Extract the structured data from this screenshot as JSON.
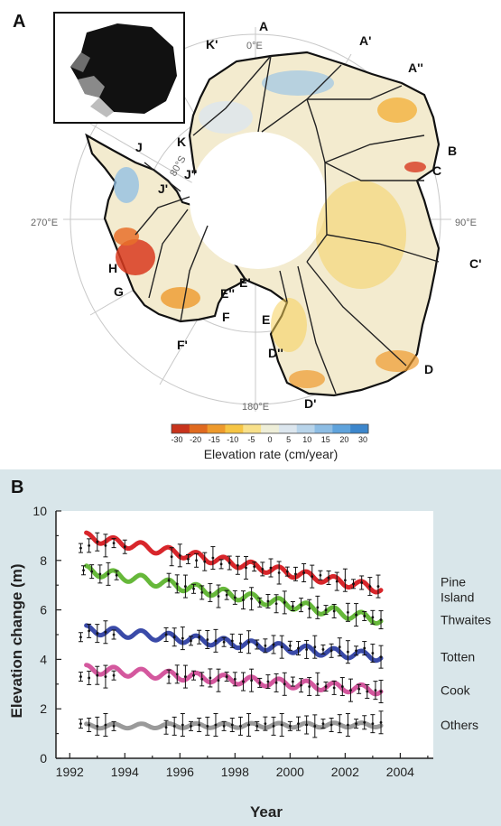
{
  "panels": {
    "a": "A",
    "b": "B"
  },
  "map": {
    "sector_labels": [
      "A",
      "A'",
      "A''",
      "B",
      "C",
      "C'",
      "D",
      "D'",
      "D''",
      "E",
      "E'",
      "E''",
      "F",
      "F'",
      "G",
      "H",
      "J",
      "J'",
      "J''",
      "K",
      "K'"
    ],
    "meridian_labels": [
      "0°E",
      "90°E",
      "180°E",
      "270°E"
    ],
    "latitude_label": "80°S",
    "colorbar": {
      "ticks": [
        "-30",
        "-20",
        "-15",
        "-10",
        "-5",
        "0",
        "5",
        "10",
        "15",
        "20",
        "30"
      ],
      "title": "Elevation rate (cm/year)",
      "colors": [
        "#c8331c",
        "#e06a1f",
        "#ee9a2c",
        "#f6c544",
        "#f8e08a",
        "#eeeed8",
        "#dce6ee",
        "#b8d4ea",
        "#8dbde4",
        "#5fa3dc",
        "#3c86cc"
      ]
    }
  },
  "chart_data": {
    "type": "line",
    "xlabel": "Year",
    "ylabel": "Elevation change (m)",
    "xlim": [
      1991.5,
      2005.2
    ],
    "ylim": [
      0,
      10
    ],
    "x_ticks": [
      "1992",
      "1994",
      "1996",
      "1998",
      "2000",
      "2002",
      "2004"
    ],
    "y_ticks": [
      "0",
      "2",
      "4",
      "6",
      "8",
      "10"
    ],
    "grid": false,
    "series": [
      {
        "name": "Pine Island",
        "label_lines": [
          "Pine",
          "Island"
        ],
        "color": "#d8262b",
        "x_start": 1992.6,
        "x_end": 2003.3,
        "y_start": 8.95,
        "y_end": 6.85,
        "amp": 0.17,
        "obs": [
          [
            1992.4,
            8.5
          ],
          [
            1992.7,
            8.6
          ],
          [
            1993.0,
            8.75
          ],
          [
            1993.3,
            8.6
          ],
          [
            1993.6,
            8.7
          ],
          [
            1994.0,
            8.55
          ],
          [
            1995.7,
            8.15
          ],
          [
            1996.0,
            8.2
          ],
          [
            1996.3,
            8.05
          ],
          [
            1996.6,
            8.0
          ],
          [
            1996.9,
            7.95
          ],
          [
            1997.2,
            8.1
          ],
          [
            1997.5,
            7.85
          ],
          [
            1997.8,
            7.9
          ],
          [
            1998.1,
            7.8
          ],
          [
            1998.4,
            7.7
          ],
          [
            1998.7,
            7.75
          ],
          [
            1999.0,
            7.65
          ],
          [
            1999.3,
            7.7
          ],
          [
            1999.6,
            7.5
          ],
          [
            1999.9,
            7.55
          ],
          [
            2000.2,
            7.45
          ],
          [
            2000.5,
            7.5
          ],
          [
            2000.8,
            7.35
          ],
          [
            2001.1,
            7.4
          ],
          [
            2001.4,
            7.3
          ],
          [
            2001.7,
            7.15
          ],
          [
            2002.0,
            7.2
          ],
          [
            2002.3,
            7.05
          ],
          [
            2002.6,
            7.1
          ],
          [
            2002.9,
            6.95
          ],
          [
            2003.2,
            6.95
          ]
        ]
      },
      {
        "name": "Thwaites",
        "label_lines": [
          "Thwaites"
        ],
        "color": "#66b83a",
        "x_start": 1992.6,
        "x_end": 2003.3,
        "y_start": 7.6,
        "y_end": 5.6,
        "amp": 0.18,
        "obs": [
          [
            1992.5,
            7.6
          ],
          [
            1992.8,
            7.55
          ],
          [
            1993.1,
            7.45
          ],
          [
            1993.4,
            7.45
          ],
          [
            1993.7,
            7.4
          ],
          [
            1995.6,
            7.2
          ],
          [
            1995.9,
            7.05
          ],
          [
            1996.2,
            6.95
          ],
          [
            1996.5,
            6.85
          ],
          [
            1996.8,
            6.7
          ],
          [
            1997.1,
            6.7
          ],
          [
            1997.4,
            6.55
          ],
          [
            1997.7,
            6.6
          ],
          [
            1998.0,
            6.5
          ],
          [
            1998.3,
            6.4
          ],
          [
            1998.6,
            6.45
          ],
          [
            1998.9,
            6.3
          ],
          [
            1999.2,
            6.35
          ],
          [
            1999.5,
            6.25
          ],
          [
            1999.8,
            6.3
          ],
          [
            2000.1,
            6.15
          ],
          [
            2000.4,
            6.2
          ],
          [
            2000.7,
            6.05
          ],
          [
            2001.0,
            6.1
          ],
          [
            2001.3,
            6.0
          ],
          [
            2001.6,
            5.95
          ],
          [
            2002.1,
            5.9
          ],
          [
            2002.4,
            5.8
          ],
          [
            2002.7,
            5.75
          ],
          [
            2003.0,
            5.7
          ],
          [
            2003.3,
            5.6
          ]
        ]
      },
      {
        "name": "Totten",
        "label_lines": [
          "Totten"
        ],
        "color": "#3a4aa8",
        "x_start": 1992.6,
        "x_end": 2003.3,
        "y_start": 5.2,
        "y_end": 4.1,
        "amp": 0.17,
        "obs": [
          [
            1992.4,
            4.9
          ],
          [
            1992.7,
            5.15
          ],
          [
            1993.0,
            5.05
          ],
          [
            1993.3,
            5.1
          ],
          [
            1993.6,
            5.0
          ],
          [
            1995.5,
            5.0
          ],
          [
            1995.8,
            4.9
          ],
          [
            1996.1,
            4.85
          ],
          [
            1996.4,
            4.75
          ],
          [
            1996.7,
            4.9
          ],
          [
            1997.0,
            4.8
          ],
          [
            1997.3,
            4.75
          ],
          [
            1997.6,
            4.7
          ],
          [
            1997.9,
            4.75
          ],
          [
            1998.2,
            4.65
          ],
          [
            1998.5,
            4.7
          ],
          [
            1998.8,
            4.6
          ],
          [
            1999.1,
            4.55
          ],
          [
            1999.4,
            4.6
          ],
          [
            1999.7,
            4.5
          ],
          [
            2000.0,
            4.55
          ],
          [
            2000.3,
            4.45
          ],
          [
            2000.6,
            4.4
          ],
          [
            2000.9,
            4.5
          ],
          [
            2001.2,
            4.4
          ],
          [
            2001.5,
            4.35
          ],
          [
            2001.8,
            4.5
          ],
          [
            2002.1,
            4.3
          ],
          [
            2002.4,
            4.35
          ],
          [
            2002.7,
            4.45
          ],
          [
            2003.0,
            4.25
          ],
          [
            2003.3,
            4.1
          ]
        ]
      },
      {
        "name": "Cook",
        "label_lines": [
          "Cook"
        ],
        "color": "#d4589e",
        "x_start": 1992.6,
        "x_end": 2003.3,
        "y_start": 3.6,
        "y_end": 2.75,
        "amp": 0.17,
        "obs": [
          [
            1992.4,
            3.3
          ],
          [
            1992.7,
            3.25
          ],
          [
            1993.0,
            3.35
          ],
          [
            1993.3,
            3.3
          ],
          [
            1993.6,
            3.35
          ],
          [
            1995.6,
            3.3
          ],
          [
            1995.9,
            3.4
          ],
          [
            1996.2,
            3.3
          ],
          [
            1996.5,
            3.35
          ],
          [
            1996.8,
            3.2
          ],
          [
            1997.1,
            3.25
          ],
          [
            1997.4,
            3.15
          ],
          [
            1997.7,
            3.3
          ],
          [
            1998.0,
            3.2
          ],
          [
            1998.3,
            3.1
          ],
          [
            1998.6,
            3.15
          ],
          [
            1998.9,
            3.05
          ],
          [
            1999.2,
            3.1
          ],
          [
            1999.5,
            3.05
          ],
          [
            1999.8,
            3.0
          ],
          [
            2000.1,
            3.1
          ],
          [
            2000.4,
            2.95
          ],
          [
            2000.7,
            2.9
          ],
          [
            2001.0,
            3.0
          ],
          [
            2001.3,
            2.9
          ],
          [
            2001.6,
            2.85
          ],
          [
            2001.9,
            2.9
          ],
          [
            2002.2,
            2.75
          ],
          [
            2002.5,
            2.8
          ],
          [
            2002.8,
            2.7
          ],
          [
            2003.1,
            2.75
          ],
          [
            2003.3,
            2.7
          ]
        ]
      },
      {
        "name": "Others",
        "label_lines": [
          "Others"
        ],
        "color": "#9a9a9a",
        "x_start": 1992.6,
        "x_end": 2003.3,
        "y_start": 1.3,
        "y_end": 1.35,
        "amp": 0.09,
        "obs": [
          [
            1992.4,
            1.4
          ],
          [
            1992.7,
            1.35
          ],
          [
            1993.0,
            1.3
          ],
          [
            1993.3,
            1.35
          ],
          [
            1993.6,
            1.3
          ],
          [
            1995.5,
            1.25
          ],
          [
            1995.8,
            1.3
          ],
          [
            1996.1,
            1.35
          ],
          [
            1996.4,
            1.3
          ],
          [
            1996.7,
            1.35
          ],
          [
            1997.0,
            1.3
          ],
          [
            1997.3,
            1.35
          ],
          [
            1997.6,
            1.3
          ],
          [
            1997.9,
            1.35
          ],
          [
            1998.2,
            1.3
          ],
          [
            1998.5,
            1.35
          ],
          [
            1998.8,
            1.3
          ],
          [
            1999.1,
            1.4
          ],
          [
            1999.4,
            1.3
          ],
          [
            1999.7,
            1.35
          ],
          [
            2000.0,
            1.3
          ],
          [
            2000.3,
            1.4
          ],
          [
            2000.6,
            1.35
          ],
          [
            2000.9,
            1.3
          ],
          [
            2001.2,
            1.4
          ],
          [
            2001.5,
            1.35
          ],
          [
            2001.8,
            1.4
          ],
          [
            2002.1,
            1.35
          ],
          [
            2002.4,
            1.4
          ],
          [
            2002.7,
            1.45
          ],
          [
            2003.0,
            1.4
          ],
          [
            2003.3,
            1.45
          ]
        ]
      }
    ]
  }
}
